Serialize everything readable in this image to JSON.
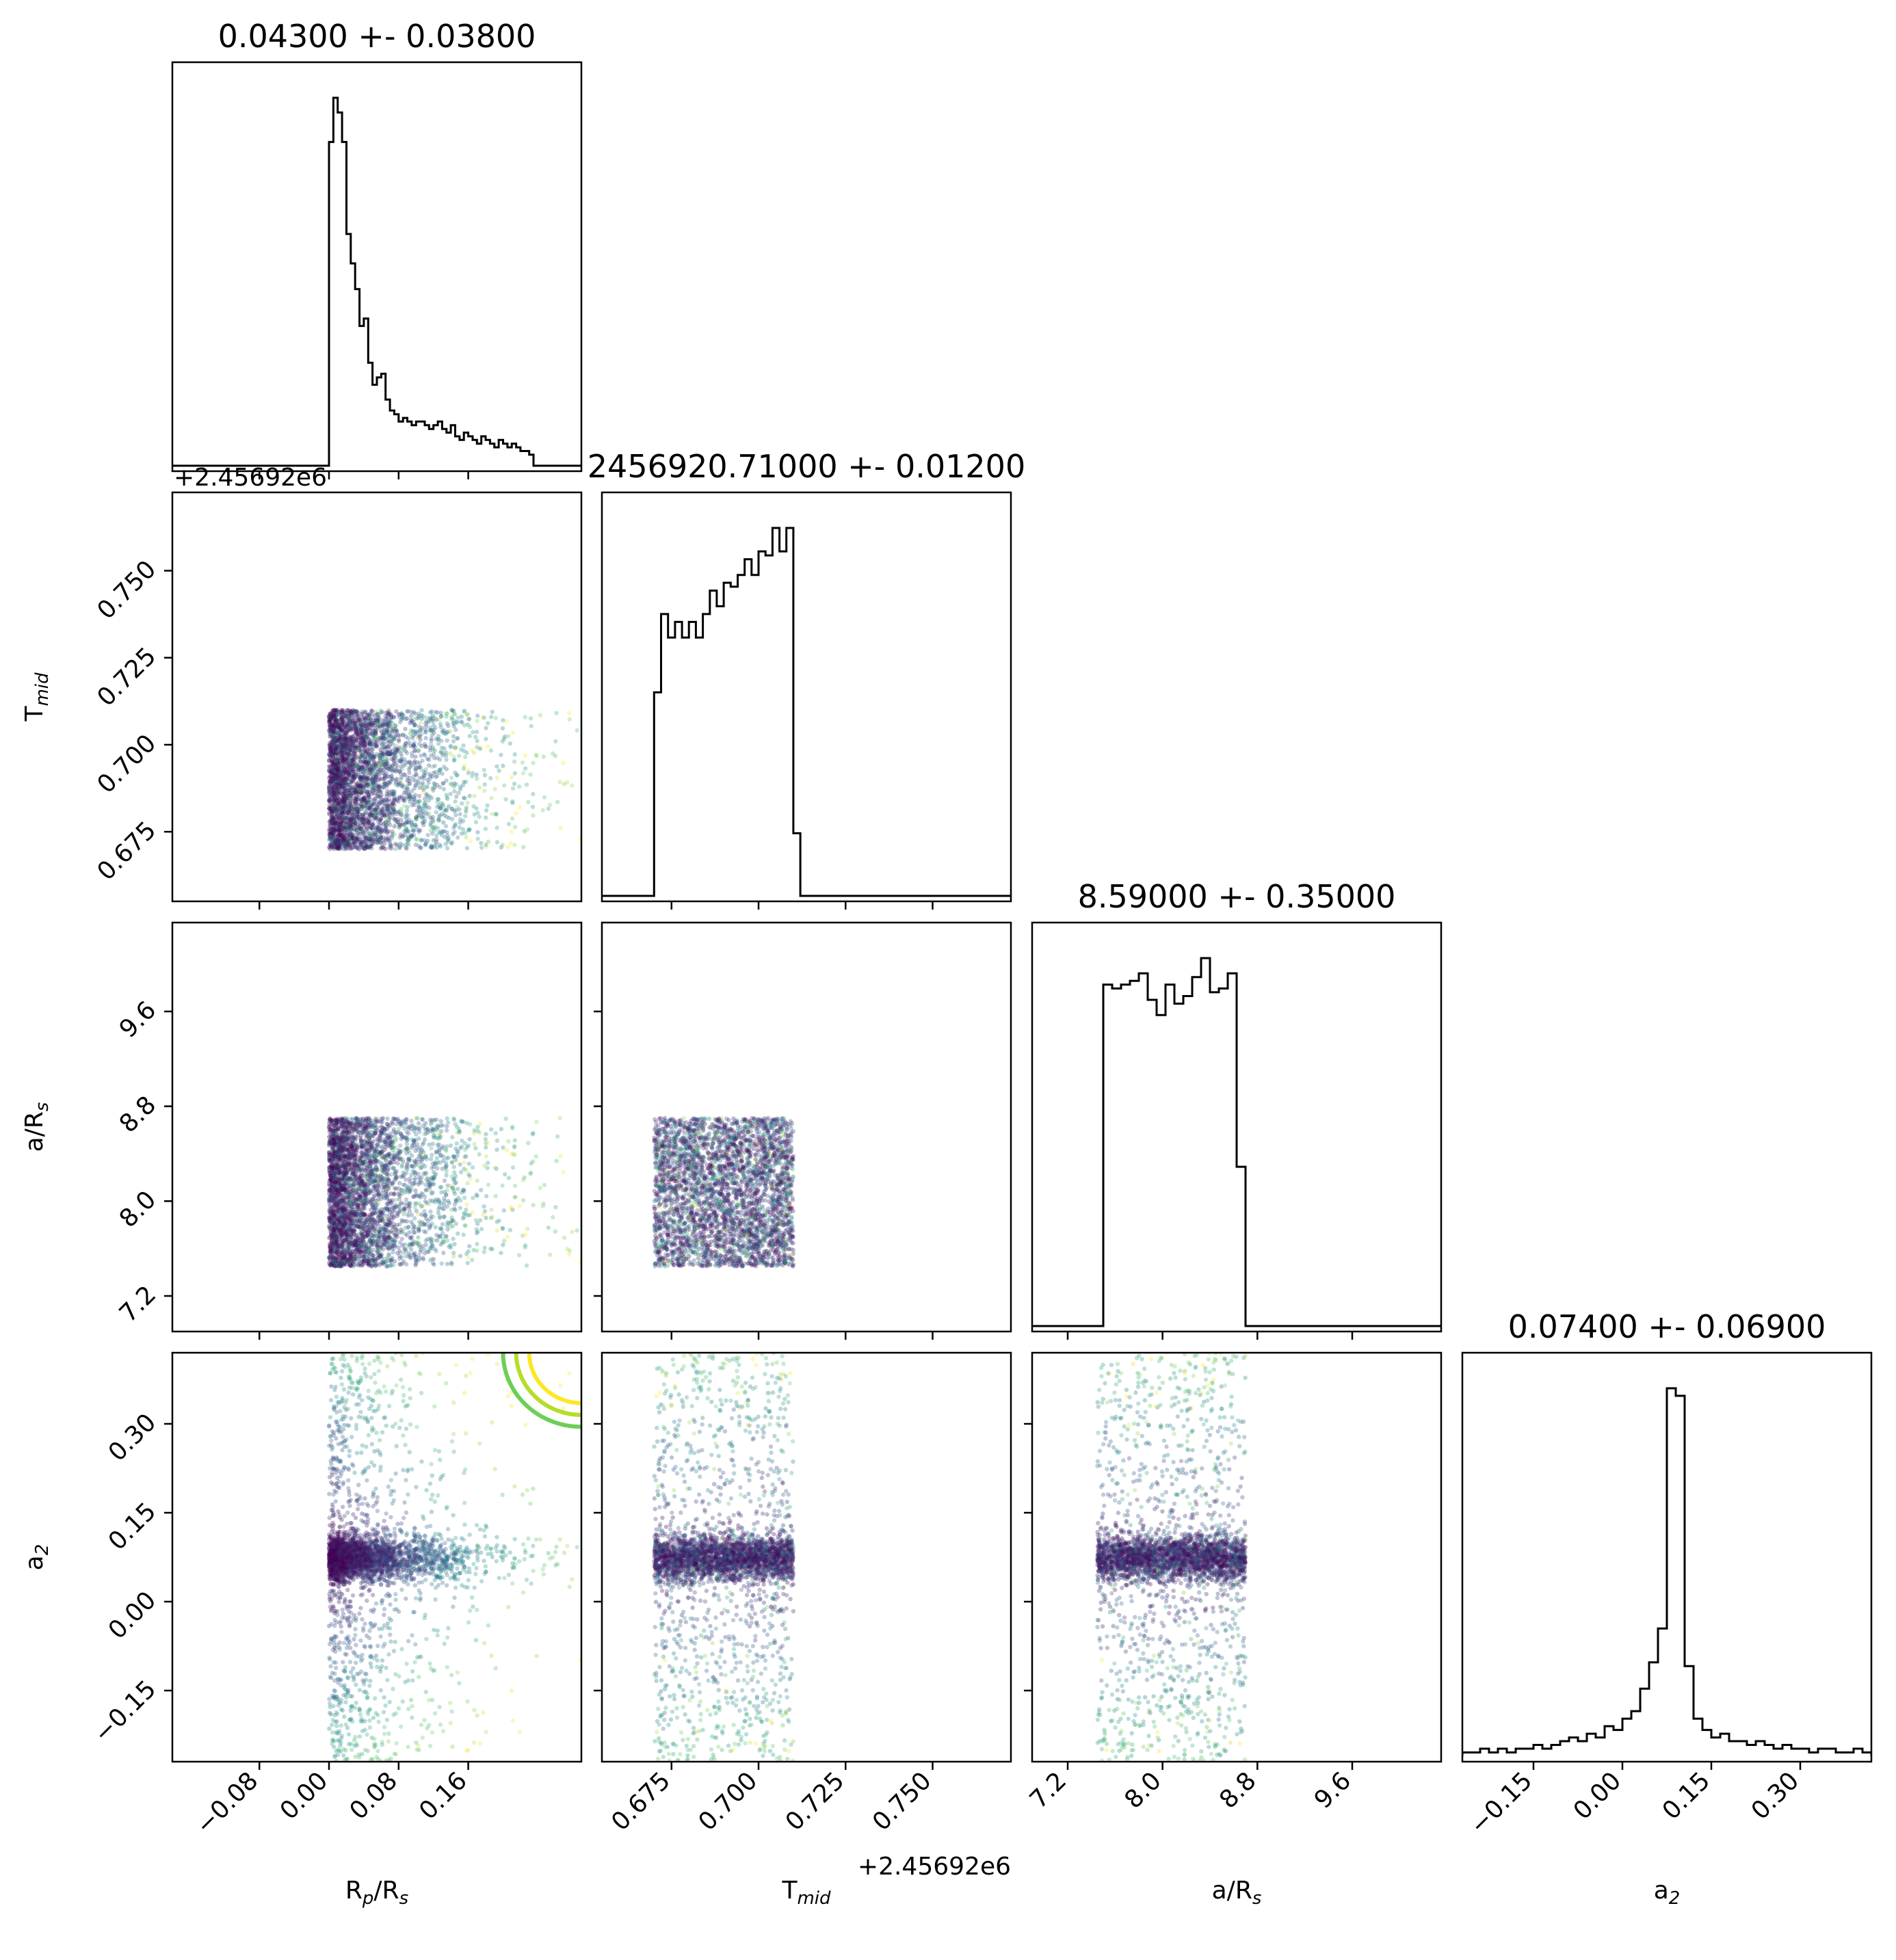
{
  "chart_data": {
    "type": "corner",
    "parameters": [
      {
        "key": "rprs",
        "label": "R",
        "label_sub": "p",
        "label_tail": "/R",
        "label_sub2": "s",
        "title": "0.04300 +- 0.03800",
        "range": [
          -0.18,
          0.29
        ],
        "ticks": [
          -0.08,
          0.0,
          0.08,
          0.16
        ],
        "tick_labels": [
          "−0.08",
          "0.00",
          "0.08",
          "0.16"
        ],
        "offset_text": ""
      },
      {
        "key": "tmid",
        "label": "T",
        "label_sub": "mid",
        "label_tail": "",
        "label_sub2": "",
        "title": "2456920.71000 +- 0.01200",
        "range": [
          0.655,
          0.7725
        ],
        "ticks": [
          0.675,
          0.7,
          0.725,
          0.75
        ],
        "tick_labels": [
          "0.675",
          "0.700",
          "0.725",
          "0.750"
        ],
        "offset_text": "+2.45692e6"
      },
      {
        "key": "ars",
        "label": "a/R",
        "label_sub": "s",
        "label_tail": "",
        "label_sub2": "",
        "title": "8.59000 +- 0.35000",
        "range": [
          6.9,
          10.35
        ],
        "ticks": [
          7.2,
          8.0,
          8.8,
          9.6
        ],
        "tick_labels": [
          "7.2",
          "8.0",
          "8.8",
          "9.6"
        ],
        "offset_text": ""
      },
      {
        "key": "a2",
        "label": "a",
        "label_sub": "2",
        "label_tail": "",
        "label_sub2": "",
        "title": "0.07400 +- 0.06900",
        "range": [
          -0.27,
          0.42
        ],
        "ticks": [
          -0.15,
          0.0,
          0.15,
          0.3
        ],
        "tick_labels": [
          "−0.15",
          "0.00",
          "0.15",
          "0.30"
        ],
        "offset_text": ""
      }
    ],
    "histograms": {
      "rprs": {
        "x": [
          -0.005,
          0.0,
          0.005,
          0.01,
          0.015,
          0.02,
          0.025,
          0.03,
          0.035,
          0.04,
          0.045,
          0.05,
          0.055,
          0.06,
          0.065,
          0.07,
          0.075,
          0.08,
          0.085,
          0.09,
          0.095,
          0.1,
          0.105,
          0.11,
          0.115,
          0.12,
          0.125,
          0.13,
          0.135,
          0.14,
          0.145,
          0.15,
          0.155,
          0.16,
          0.165,
          0.17,
          0.175,
          0.18,
          0.185,
          0.19,
          0.195,
          0.2,
          0.205,
          0.21,
          0.215,
          0.22,
          0.225,
          0.23
        ],
        "counts": [
          0,
          0.88,
          1.0,
          0.96,
          0.88,
          0.63,
          0.55,
          0.48,
          0.38,
          0.4,
          0.28,
          0.22,
          0.24,
          0.25,
          0.18,
          0.15,
          0.14,
          0.12,
          0.13,
          0.12,
          0.11,
          0.12,
          0.12,
          0.11,
          0.1,
          0.11,
          0.12,
          0.1,
          0.09,
          0.11,
          0.08,
          0.07,
          0.09,
          0.08,
          0.07,
          0.06,
          0.08,
          0.07,
          0.06,
          0.05,
          0.07,
          0.06,
          0.05,
          0.06,
          0.05,
          0.04,
          0.04,
          0.03
        ]
      },
      "tmid": {
        "x": [
          0.67,
          0.672,
          0.674,
          0.676,
          0.678,
          0.68,
          0.682,
          0.684,
          0.686,
          0.688,
          0.69,
          0.692,
          0.694,
          0.696,
          0.698,
          0.7,
          0.702,
          0.704,
          0.706,
          0.708,
          0.71
        ],
        "counts": [
          0.52,
          0.72,
          0.66,
          0.7,
          0.66,
          0.7,
          0.66,
          0.72,
          0.78,
          0.74,
          0.8,
          0.79,
          0.82,
          0.86,
          0.82,
          0.88,
          0.87,
          0.94,
          0.88,
          0.94,
          0.16
        ]
      },
      "ars": {
        "x": [
          7.5,
          7.575,
          7.65,
          7.725,
          7.8,
          7.875,
          7.95,
          8.025,
          8.1,
          8.175,
          8.25,
          8.325,
          8.4,
          8.475,
          8.55,
          8.625,
          8.7
        ],
        "counts": [
          0.9,
          0.89,
          0.9,
          0.91,
          0.93,
          0.86,
          0.82,
          0.9,
          0.85,
          0.87,
          0.92,
          0.97,
          0.88,
          0.89,
          0.93,
          0.42,
          0.0
        ]
      },
      "a2": {
        "x": [
          -0.27,
          -0.255,
          -0.24,
          -0.225,
          -0.21,
          -0.195,
          -0.18,
          -0.165,
          -0.15,
          -0.135,
          -0.12,
          -0.105,
          -0.09,
          -0.075,
          -0.06,
          -0.045,
          -0.03,
          -0.015,
          0.0,
          0.015,
          0.03,
          0.045,
          0.06,
          0.075,
          0.09,
          0.105,
          0.12,
          0.135,
          0.15,
          0.165,
          0.18,
          0.195,
          0.21,
          0.225,
          0.24,
          0.255,
          0.27,
          0.285,
          0.3,
          0.315,
          0.33,
          0.345,
          0.36,
          0.375,
          0.39,
          0.405
        ],
        "counts": [
          0.01,
          0.01,
          0.02,
          0.01,
          0.02,
          0.01,
          0.02,
          0.02,
          0.03,
          0.02,
          0.03,
          0.04,
          0.05,
          0.04,
          0.06,
          0.05,
          0.08,
          0.07,
          0.1,
          0.12,
          0.18,
          0.25,
          0.34,
          0.98,
          0.96,
          0.24,
          0.1,
          0.07,
          0.05,
          0.06,
          0.04,
          0.04,
          0.03,
          0.04,
          0.03,
          0.02,
          0.03,
          0.02,
          0.02,
          0.01,
          0.02,
          0.02,
          0.01,
          0.01,
          0.02,
          0.01
        ]
      }
    },
    "scatter_extents": {
      "rprs": [
        0.0,
        0.29
      ],
      "tmid": [
        0.67,
        0.71
      ],
      "ars": [
        7.45,
        8.7
      ],
      "a2": [
        -0.27,
        0.42
      ]
    },
    "contour": {
      "panel": "a2 vs rprs",
      "center": [
        0.29,
        0.42
      ],
      "radii": [
        [
          0.06,
          0.085
        ],
        [
          0.075,
          0.105
        ],
        [
          0.09,
          0.125
        ]
      ],
      "colors": [
        "#fde725",
        "#b5de2b",
        "#6ece58"
      ]
    },
    "colormap": [
      "#440154",
      "#3b528b",
      "#21918c",
      "#5ec962",
      "#fde725"
    ],
    "grid": false,
    "legend": "none"
  }
}
